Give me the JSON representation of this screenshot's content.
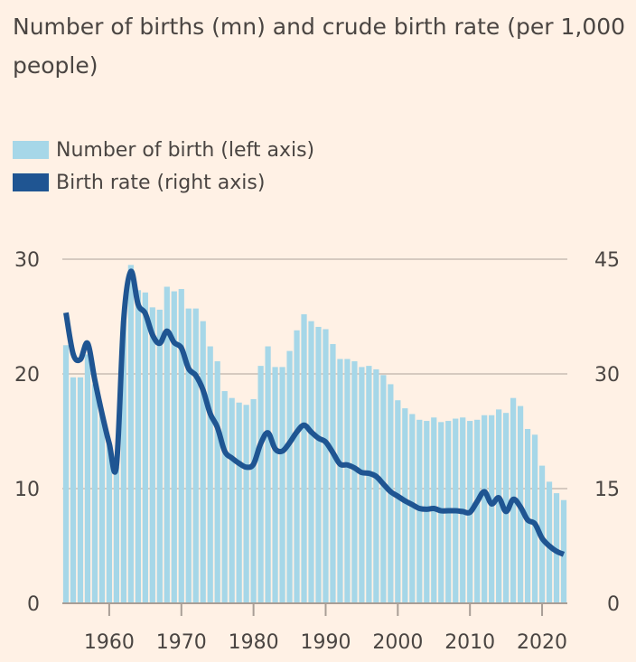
{
  "chart_data": {
    "type": "bar+line",
    "title": "Number of births (mn) and crude birth rate (per 1,000 people)",
    "legend_position": "top-left",
    "legend": [
      {
        "label": "Number of birth (left axis)",
        "color": "#a6d7e8"
      },
      {
        "label": "Birth rate (right axis)",
        "color": "#1f5592"
      }
    ],
    "x": [
      1954,
      1955,
      1956,
      1957,
      1958,
      1959,
      1960,
      1961,
      1962,
      1963,
      1964,
      1965,
      1966,
      1967,
      1968,
      1969,
      1970,
      1971,
      1972,
      1973,
      1974,
      1975,
      1976,
      1977,
      1978,
      1979,
      1980,
      1981,
      1982,
      1983,
      1984,
      1985,
      1986,
      1987,
      1988,
      1989,
      1990,
      1991,
      1992,
      1993,
      1994,
      1995,
      1996,
      1997,
      1998,
      1999,
      2000,
      2001,
      2002,
      2003,
      2004,
      2005,
      2006,
      2007,
      2008,
      2009,
      2010,
      2011,
      2012,
      2013,
      2014,
      2015,
      2016,
      2017,
      2018,
      2019,
      2020,
      2021,
      2022,
      2023
    ],
    "x_ticks": [
      "1960",
      "1970",
      "1980",
      "1990",
      "2000",
      "2010",
      "2020"
    ],
    "xlim": [
      1953.5,
      2023.5
    ],
    "left_axis": {
      "label": "Number of births (mn)",
      "ylim": [
        0,
        30
      ],
      "ticks": [
        "0",
        "10",
        "20",
        "30"
      ]
    },
    "right_axis": {
      "label": "Birth rate (per 1,000)",
      "ylim": [
        0,
        45
      ],
      "ticks": [
        "0",
        "15",
        "30",
        "45"
      ]
    },
    "grid": true,
    "series": [
      {
        "name": "Number of birth (left axis)",
        "type": "bar",
        "axis": "left",
        "values": [
          22.5,
          19.7,
          19.7,
          21.7,
          19.1,
          16.5,
          13.9,
          11.9,
          24.6,
          29.5,
          27.3,
          27.1,
          25.8,
          25.6,
          27.6,
          27.2,
          27.4,
          25.7,
          25.7,
          24.6,
          22.4,
          21.1,
          18.5,
          17.9,
          17.5,
          17.3,
          17.8,
          20.7,
          22.4,
          20.6,
          20.6,
          22.0,
          23.8,
          25.2,
          24.6,
          24.1,
          23.9,
          22.6,
          21.3,
          21.3,
          21.1,
          20.6,
          20.7,
          20.4,
          19.9,
          19.1,
          17.7,
          17.0,
          16.5,
          16.0,
          15.9,
          16.2,
          15.8,
          15.9,
          16.1,
          16.2,
          15.9,
          16.0,
          16.4,
          16.4,
          16.9,
          16.6,
          17.9,
          17.2,
          15.2,
          14.7,
          12.0,
          10.6,
          9.6,
          9.0
        ]
      },
      {
        "name": "Birth rate (right axis)",
        "type": "line",
        "axis": "right",
        "values": [
          38.0,
          32.6,
          31.9,
          34.0,
          29.2,
          24.8,
          20.9,
          18.0,
          37.0,
          43.4,
          39.1,
          37.9,
          35.1,
          34.0,
          35.6,
          34.1,
          33.4,
          30.7,
          29.8,
          27.9,
          24.8,
          23.0,
          19.9,
          19.0,
          18.3,
          17.8,
          18.2,
          20.9,
          22.3,
          20.2,
          19.9,
          21.0,
          22.4,
          23.3,
          22.4,
          21.6,
          21.1,
          19.7,
          18.2,
          18.1,
          17.7,
          17.1,
          17.0,
          16.6,
          15.6,
          14.6,
          14.0,
          13.4,
          12.9,
          12.4,
          12.3,
          12.4,
          12.1,
          12.1,
          12.1,
          12.0,
          11.9,
          13.3,
          14.6,
          13.0,
          13.8,
          12.0,
          13.6,
          12.6,
          10.9,
          10.4,
          8.5,
          7.5,
          6.8,
          6.4
        ]
      }
    ]
  }
}
